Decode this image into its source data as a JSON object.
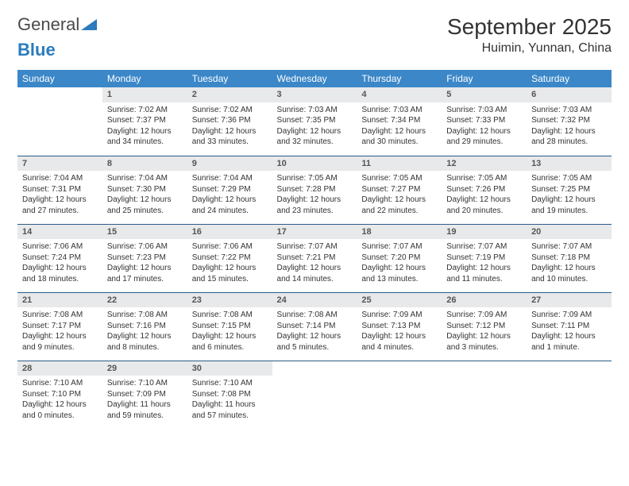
{
  "logo": {
    "text1": "General",
    "text2": "Blue"
  },
  "title": "September 2025",
  "location": "Huimin, Yunnan, China",
  "colors": {
    "header_bg": "#3b87c8",
    "header_fg": "#ffffff",
    "daynum_bg": "#e8e9ea",
    "row_divider": "#2b5d8a",
    "logo_blue": "#2b7bbd"
  },
  "weekdays": [
    "Sunday",
    "Monday",
    "Tuesday",
    "Wednesday",
    "Thursday",
    "Friday",
    "Saturday"
  ],
  "weeks": [
    [
      {
        "n": "",
        "sr": "",
        "ss": "",
        "dl": ""
      },
      {
        "n": "1",
        "sr": "Sunrise: 7:02 AM",
        "ss": "Sunset: 7:37 PM",
        "dl": "Daylight: 12 hours and 34 minutes."
      },
      {
        "n": "2",
        "sr": "Sunrise: 7:02 AM",
        "ss": "Sunset: 7:36 PM",
        "dl": "Daylight: 12 hours and 33 minutes."
      },
      {
        "n": "3",
        "sr": "Sunrise: 7:03 AM",
        "ss": "Sunset: 7:35 PM",
        "dl": "Daylight: 12 hours and 32 minutes."
      },
      {
        "n": "4",
        "sr": "Sunrise: 7:03 AM",
        "ss": "Sunset: 7:34 PM",
        "dl": "Daylight: 12 hours and 30 minutes."
      },
      {
        "n": "5",
        "sr": "Sunrise: 7:03 AM",
        "ss": "Sunset: 7:33 PM",
        "dl": "Daylight: 12 hours and 29 minutes."
      },
      {
        "n": "6",
        "sr": "Sunrise: 7:03 AM",
        "ss": "Sunset: 7:32 PM",
        "dl": "Daylight: 12 hours and 28 minutes."
      }
    ],
    [
      {
        "n": "7",
        "sr": "Sunrise: 7:04 AM",
        "ss": "Sunset: 7:31 PM",
        "dl": "Daylight: 12 hours and 27 minutes."
      },
      {
        "n": "8",
        "sr": "Sunrise: 7:04 AM",
        "ss": "Sunset: 7:30 PM",
        "dl": "Daylight: 12 hours and 25 minutes."
      },
      {
        "n": "9",
        "sr": "Sunrise: 7:04 AM",
        "ss": "Sunset: 7:29 PM",
        "dl": "Daylight: 12 hours and 24 minutes."
      },
      {
        "n": "10",
        "sr": "Sunrise: 7:05 AM",
        "ss": "Sunset: 7:28 PM",
        "dl": "Daylight: 12 hours and 23 minutes."
      },
      {
        "n": "11",
        "sr": "Sunrise: 7:05 AM",
        "ss": "Sunset: 7:27 PM",
        "dl": "Daylight: 12 hours and 22 minutes."
      },
      {
        "n": "12",
        "sr": "Sunrise: 7:05 AM",
        "ss": "Sunset: 7:26 PM",
        "dl": "Daylight: 12 hours and 20 minutes."
      },
      {
        "n": "13",
        "sr": "Sunrise: 7:05 AM",
        "ss": "Sunset: 7:25 PM",
        "dl": "Daylight: 12 hours and 19 minutes."
      }
    ],
    [
      {
        "n": "14",
        "sr": "Sunrise: 7:06 AM",
        "ss": "Sunset: 7:24 PM",
        "dl": "Daylight: 12 hours and 18 minutes."
      },
      {
        "n": "15",
        "sr": "Sunrise: 7:06 AM",
        "ss": "Sunset: 7:23 PM",
        "dl": "Daylight: 12 hours and 17 minutes."
      },
      {
        "n": "16",
        "sr": "Sunrise: 7:06 AM",
        "ss": "Sunset: 7:22 PM",
        "dl": "Daylight: 12 hours and 15 minutes."
      },
      {
        "n": "17",
        "sr": "Sunrise: 7:07 AM",
        "ss": "Sunset: 7:21 PM",
        "dl": "Daylight: 12 hours and 14 minutes."
      },
      {
        "n": "18",
        "sr": "Sunrise: 7:07 AM",
        "ss": "Sunset: 7:20 PM",
        "dl": "Daylight: 12 hours and 13 minutes."
      },
      {
        "n": "19",
        "sr": "Sunrise: 7:07 AM",
        "ss": "Sunset: 7:19 PM",
        "dl": "Daylight: 12 hours and 11 minutes."
      },
      {
        "n": "20",
        "sr": "Sunrise: 7:07 AM",
        "ss": "Sunset: 7:18 PM",
        "dl": "Daylight: 12 hours and 10 minutes."
      }
    ],
    [
      {
        "n": "21",
        "sr": "Sunrise: 7:08 AM",
        "ss": "Sunset: 7:17 PM",
        "dl": "Daylight: 12 hours and 9 minutes."
      },
      {
        "n": "22",
        "sr": "Sunrise: 7:08 AM",
        "ss": "Sunset: 7:16 PM",
        "dl": "Daylight: 12 hours and 8 minutes."
      },
      {
        "n": "23",
        "sr": "Sunrise: 7:08 AM",
        "ss": "Sunset: 7:15 PM",
        "dl": "Daylight: 12 hours and 6 minutes."
      },
      {
        "n": "24",
        "sr": "Sunrise: 7:08 AM",
        "ss": "Sunset: 7:14 PM",
        "dl": "Daylight: 12 hours and 5 minutes."
      },
      {
        "n": "25",
        "sr": "Sunrise: 7:09 AM",
        "ss": "Sunset: 7:13 PM",
        "dl": "Daylight: 12 hours and 4 minutes."
      },
      {
        "n": "26",
        "sr": "Sunrise: 7:09 AM",
        "ss": "Sunset: 7:12 PM",
        "dl": "Daylight: 12 hours and 3 minutes."
      },
      {
        "n": "27",
        "sr": "Sunrise: 7:09 AM",
        "ss": "Sunset: 7:11 PM",
        "dl": "Daylight: 12 hours and 1 minute."
      }
    ],
    [
      {
        "n": "28",
        "sr": "Sunrise: 7:10 AM",
        "ss": "Sunset: 7:10 PM",
        "dl": "Daylight: 12 hours and 0 minutes."
      },
      {
        "n": "29",
        "sr": "Sunrise: 7:10 AM",
        "ss": "Sunset: 7:09 PM",
        "dl": "Daylight: 11 hours and 59 minutes."
      },
      {
        "n": "30",
        "sr": "Sunrise: 7:10 AM",
        "ss": "Sunset: 7:08 PM",
        "dl": "Daylight: 11 hours and 57 minutes."
      },
      {
        "n": "",
        "sr": "",
        "ss": "",
        "dl": ""
      },
      {
        "n": "",
        "sr": "",
        "ss": "",
        "dl": ""
      },
      {
        "n": "",
        "sr": "",
        "ss": "",
        "dl": ""
      },
      {
        "n": "",
        "sr": "",
        "ss": "",
        "dl": ""
      }
    ]
  ]
}
